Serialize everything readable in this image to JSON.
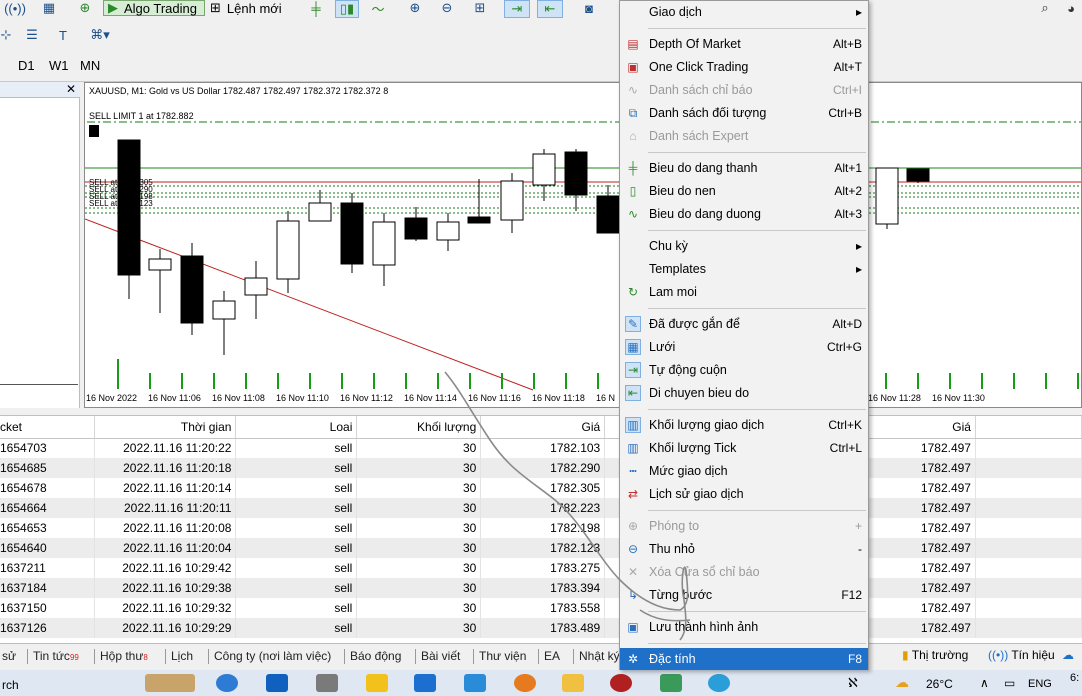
{
  "toolbar": {
    "algo_trading": "Algo Trading",
    "new_order": "Lệnh mới",
    "timeframes": [
      "D1",
      "W1",
      "MN"
    ]
  },
  "chart": {
    "info": "XAUUSD, M1:  Gold vs US Dollar  1782.487 1782.497 1782.372 1782.372  8",
    "sell_limit": "SELL LIMIT 1 at 1782.882",
    "x_labels": [
      "16 Nov 2022",
      "16 Nov 11:06",
      "16 Nov 11:08",
      "16 Nov 11:10",
      "16 Nov 11:12",
      "16 Nov 11:14",
      "16 Nov 11:16",
      "16 Nov 11:18",
      "16 N",
      "16 Nov 11:28",
      "16 Nov 11:30"
    ]
  },
  "table": {
    "headers": [
      "cket",
      "Thời gian",
      "Loai",
      "Khối lượng",
      "Giá",
      "",
      "",
      "Giá"
    ],
    "rows": [
      [
        "1654703",
        "2022.11.16 11:20:22",
        "sell",
        "30",
        "1782.103",
        "1782.497"
      ],
      [
        "1654685",
        "2022.11.16 11:20:18",
        "sell",
        "30",
        "1782.290",
        "1782.497"
      ],
      [
        "1654678",
        "2022.11.16 11:20:14",
        "sell",
        "30",
        "1782.305",
        "1782.497"
      ],
      [
        "1654664",
        "2022.11.16 11:20:11",
        "sell",
        "30",
        "1782.223",
        "1782.497"
      ],
      [
        "1654653",
        "2022.11.16 11:20:08",
        "sell",
        "30",
        "1782.198",
        "1782.497"
      ],
      [
        "1654640",
        "2022.11.16 11:20:04",
        "sell",
        "30",
        "1782.123",
        "1782.497"
      ],
      [
        "1637211",
        "2022.11.16 10:29:42",
        "sell",
        "30",
        "1783.275",
        "1782.497"
      ],
      [
        "1637184",
        "2022.11.16 10:29:38",
        "sell",
        "30",
        "1783.394",
        "1782.497"
      ],
      [
        "1637150",
        "2022.11.16 10:29:32",
        "sell",
        "30",
        "1783.558",
        "1782.497"
      ],
      [
        "1637126",
        "2022.11.16 10:29:29",
        "sell",
        "30",
        "1783.489",
        "1782.497"
      ]
    ]
  },
  "tabs": [
    {
      "label": "sử",
      "badge": ""
    },
    {
      "label": "Tin tức",
      "badge": "99"
    },
    {
      "label": "Hộp thư",
      "badge": "8"
    },
    {
      "label": "Lịch",
      "badge": ""
    },
    {
      "label": "Công ty (nơi làm việc)",
      "badge": ""
    },
    {
      "label": "Báo động",
      "badge": ""
    },
    {
      "label": "Bài viết",
      "badge": ""
    },
    {
      "label": "Thư viện",
      "badge": ""
    },
    {
      "label": "EA",
      "badge": ""
    },
    {
      "label": "Nhật ký",
      "badge": ""
    }
  ],
  "status": {
    "market": "Thị trường",
    "signals": "Tín hiệu"
  },
  "taskbar": {
    "temp": "26°C",
    "lang": "ENG",
    "time": "6:"
  },
  "menu": {
    "items": [
      {
        "label": "Giao dịch",
        "shortcut": "▸",
        "icon": "",
        "state": "normal"
      },
      {
        "label": "Depth Of Market",
        "shortcut": "Alt+B",
        "icon": "dom-icon",
        "state": "normal"
      },
      {
        "label": "One Click Trading",
        "shortcut": "Alt+T",
        "icon": "one-click-icon",
        "state": "normal"
      },
      {
        "label": "Danh sách chỉ báo",
        "shortcut": "Ctrl+I",
        "icon": "indicator-icon",
        "state": "disabled"
      },
      {
        "label": "Danh sách đối tượng",
        "shortcut": "Ctrl+B",
        "icon": "objects-icon",
        "state": "normal"
      },
      {
        "label": "Danh sách Expert",
        "shortcut": "",
        "icon": "expert-icon",
        "state": "disabled"
      },
      {
        "label": "Bieu do dang thanh",
        "shortcut": "Alt+1",
        "icon": "bar-chart-icon",
        "state": "normal"
      },
      {
        "label": "Bieu do nen",
        "shortcut": "Alt+2",
        "icon": "candles-icon",
        "state": "normal"
      },
      {
        "label": "Bieu do dang duong",
        "shortcut": "Alt+3",
        "icon": "line-chart-icon",
        "state": "normal"
      },
      {
        "label": "Chu kỳ",
        "shortcut": "▸",
        "icon": "",
        "state": "normal"
      },
      {
        "label": "Templates",
        "shortcut": "▸",
        "icon": "",
        "state": "normal"
      },
      {
        "label": "Lam moi",
        "shortcut": "",
        "icon": "refresh-icon",
        "state": "normal"
      },
      {
        "label": "Đã được gắn để",
        "shortcut": "Alt+D",
        "icon": "pin-icon",
        "state": "checked"
      },
      {
        "label": "Lưới",
        "shortcut": "Ctrl+G",
        "icon": "grid-icon",
        "state": "checked"
      },
      {
        "label": "Tự động cuộn",
        "shortcut": "",
        "icon": "autoscroll-icon",
        "state": "checked"
      },
      {
        "label": "Di chuyen bieu do",
        "shortcut": "",
        "icon": "shift-icon",
        "state": "checked"
      },
      {
        "label": "Khối lượng giao dịch",
        "shortcut": "Ctrl+K",
        "icon": "volume-icon",
        "state": "checked"
      },
      {
        "label": "Khối lượng Tick",
        "shortcut": "Ctrl+L",
        "icon": "tick-volume-icon",
        "state": "normal"
      },
      {
        "label": "Mức giao dịch",
        "shortcut": "",
        "icon": "trade-levels-icon",
        "state": "normal"
      },
      {
        "label": "Lịch sử giao dịch",
        "shortcut": "",
        "icon": "history-icon",
        "state": "normal"
      },
      {
        "label": "Phóng to",
        "shortcut": "+",
        "icon": "zoom-in-icon",
        "state": "disabled"
      },
      {
        "label": "Thu nhỏ",
        "shortcut": "-",
        "icon": "zoom-out-icon",
        "state": "normal"
      },
      {
        "label": "Xóa Cửa sổ chỉ báo",
        "shortcut": "",
        "icon": "delete-icon",
        "state": "disabled"
      },
      {
        "label": "Từng bước",
        "shortcut": "F12",
        "icon": "step-icon",
        "state": "normal"
      },
      {
        "label": "Lưu thành hình ảnh",
        "shortcut": "",
        "icon": "save-image-icon",
        "state": "normal"
      },
      {
        "label": "Đặc tính",
        "shortcut": "F8",
        "icon": "properties-icon",
        "state": "selected"
      }
    ]
  }
}
